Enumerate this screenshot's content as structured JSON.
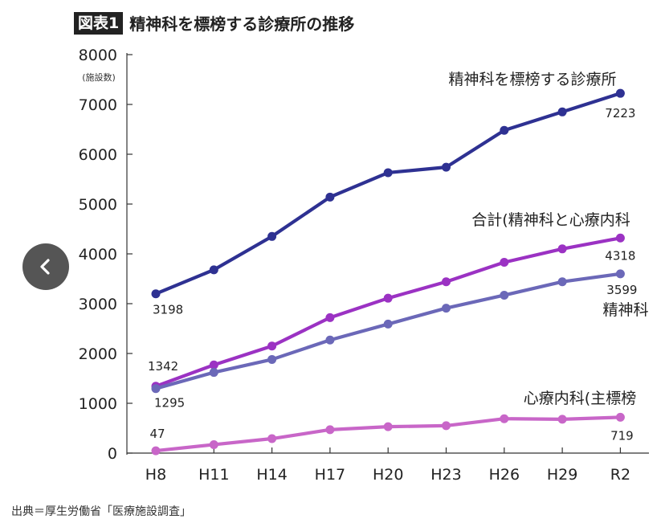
{
  "header": {
    "badge": "図表1",
    "title": "精神科を標榜する診療所の推移"
  },
  "source": "出典＝厚生労働省「医療施設調査」",
  "nav": {
    "back_icon": "chevron-left-icon"
  },
  "chart_data": {
    "type": "line",
    "ylabel": "(施設数)",
    "ylim": [
      0,
      8000
    ],
    "yticks": [
      0,
      1000,
      2000,
      3000,
      4000,
      5000,
      6000,
      7000,
      8000
    ],
    "grid": false,
    "categories": [
      "H8",
      "H11",
      "H14",
      "H17",
      "H20",
      "H23",
      "H26",
      "H29",
      "R2"
    ],
    "series": [
      {
        "name": "精神科を標榜する診療所",
        "color": "#2e3192",
        "values": [
          3198,
          3680,
          4350,
          5140,
          5630,
          5740,
          6480,
          6850,
          7223
        ]
      },
      {
        "name": "合計(精神科と心療内科",
        "color": "#9b32c3",
        "values": [
          1342,
          1770,
          2150,
          2720,
          3110,
          3440,
          3830,
          4100,
          4318
        ]
      },
      {
        "name": "精神科",
        "color": "#6b68b8",
        "values": [
          1295,
          1620,
          1880,
          2270,
          2590,
          2910,
          3170,
          3440,
          3599
        ]
      },
      {
        "name": "心療内科(主標榜",
        "color": "#c866c8",
        "values": [
          47,
          170,
          290,
          470,
          530,
          550,
          690,
          680,
          719
        ]
      }
    ],
    "data_labels": [
      {
        "series": 0,
        "index": 0,
        "text": "3198"
      },
      {
        "series": 0,
        "index": 8,
        "text": "7223"
      },
      {
        "series": 1,
        "index": 0,
        "text": "1342"
      },
      {
        "series": 1,
        "index": 8,
        "text": "4318"
      },
      {
        "series": 2,
        "index": 0,
        "text": "1295"
      },
      {
        "series": 2,
        "index": 8,
        "text": "3599"
      },
      {
        "series": 3,
        "index": 0,
        "text": "47"
      },
      {
        "series": 3,
        "index": 8,
        "text": "719"
      }
    ]
  }
}
